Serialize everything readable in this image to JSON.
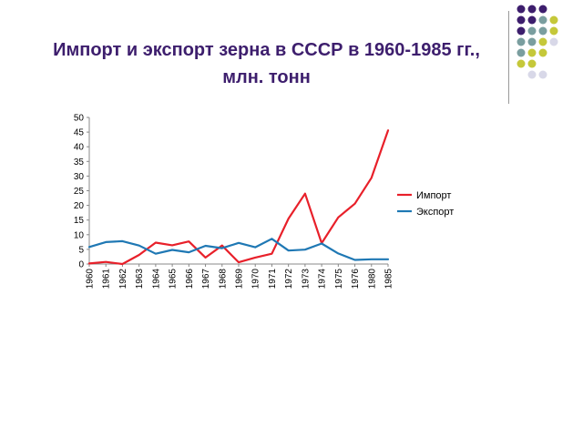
{
  "slide": {
    "title_line1": "Импорт и экспорт зерна в СССР в 1960-1985 гг.,",
    "title_line2": "млн. тонн",
    "decor_colors": [
      "#3d1e6d",
      "#7a9e9f",
      "#c5c83a",
      "#d8d8e8"
    ]
  },
  "chart_data": {
    "type": "line",
    "categories": [
      "1960",
      "1961",
      "1962",
      "1963",
      "1964",
      "1965",
      "1966",
      "1967",
      "1968",
      "1969",
      "1970",
      "1971",
      "1972",
      "1973",
      "1974",
      "1975",
      "1976",
      "1980",
      "1985"
    ],
    "series": [
      {
        "name": "Импорт",
        "color": "#e8202a",
        "values": [
          0.2,
          0.7,
          0.0,
          3.1,
          7.3,
          6.4,
          7.7,
          2.2,
          6.3,
          0.6,
          2.2,
          3.5,
          15.5,
          24.0,
          7.1,
          15.9,
          20.6,
          29.4,
          45.6
        ]
      },
      {
        "name": "Экспорт",
        "color": "#1f78b4",
        "values": [
          5.8,
          7.5,
          7.8,
          6.3,
          3.5,
          4.8,
          4.0,
          6.2,
          5.4,
          7.2,
          5.7,
          8.6,
          4.6,
          4.9,
          7.0,
          3.6,
          1.4,
          1.6,
          1.6
        ]
      }
    ],
    "ylim": [
      0,
      50
    ],
    "yticks": [
      0,
      5,
      10,
      15,
      20,
      25,
      30,
      35,
      40,
      45,
      50
    ],
    "grid": false,
    "legend_position": "right"
  }
}
